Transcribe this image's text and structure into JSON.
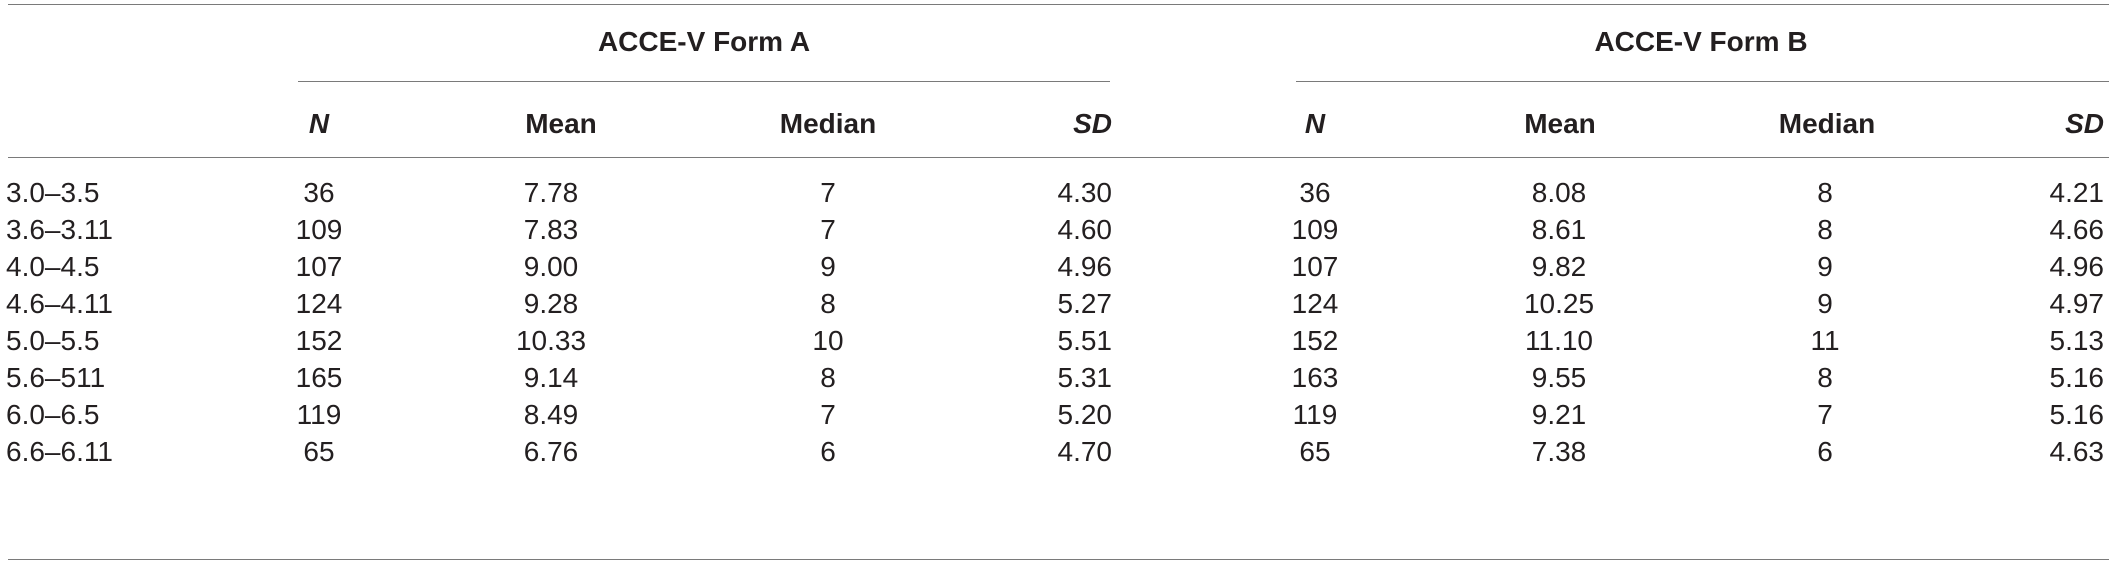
{
  "table": {
    "group_a": "ACCE-V Form A",
    "group_b": "ACCE-V Form B",
    "columns": [
      "N",
      "Mean",
      "Median",
      "SD"
    ],
    "rows": [
      {
        "age": "3.0–3.5",
        "a": [
          "36",
          "7.78",
          "7",
          "4.30"
        ],
        "b": [
          "36",
          "8.08",
          "8",
          "4.21"
        ]
      },
      {
        "age": "3.6–3.11",
        "a": [
          "109",
          "7.83",
          "7",
          "4.60"
        ],
        "b": [
          "109",
          "8.61",
          "8",
          "4.66"
        ]
      },
      {
        "age": "4.0–4.5",
        "a": [
          "107",
          "9.00",
          "9",
          "4.96"
        ],
        "b": [
          "107",
          "9.82",
          "9",
          "4.96"
        ]
      },
      {
        "age": "4.6–4.11",
        "a": [
          "124",
          "9.28",
          "8",
          "5.27"
        ],
        "b": [
          "124",
          "10.25",
          "9",
          "4.97"
        ]
      },
      {
        "age": "5.0–5.5",
        "a": [
          "152",
          "10.33",
          "10",
          "5.51"
        ],
        "b": [
          "152",
          "11.10",
          "11",
          "5.13"
        ]
      },
      {
        "age": "5.6–511",
        "a": [
          "165",
          "9.14",
          "8",
          "5.31"
        ],
        "b": [
          "163",
          "9.55",
          "8",
          "5.16"
        ]
      },
      {
        "age": "6.0–6.5",
        "a": [
          "119",
          "8.49",
          "7",
          "5.20"
        ],
        "b": [
          "119",
          "9.21",
          "7",
          "5.16"
        ]
      },
      {
        "age": "6.6–6.11",
        "a": [
          "65",
          "6.76",
          "6",
          "4.70"
        ],
        "b": [
          "65",
          "7.38",
          "6",
          "4.63"
        ]
      }
    ]
  }
}
